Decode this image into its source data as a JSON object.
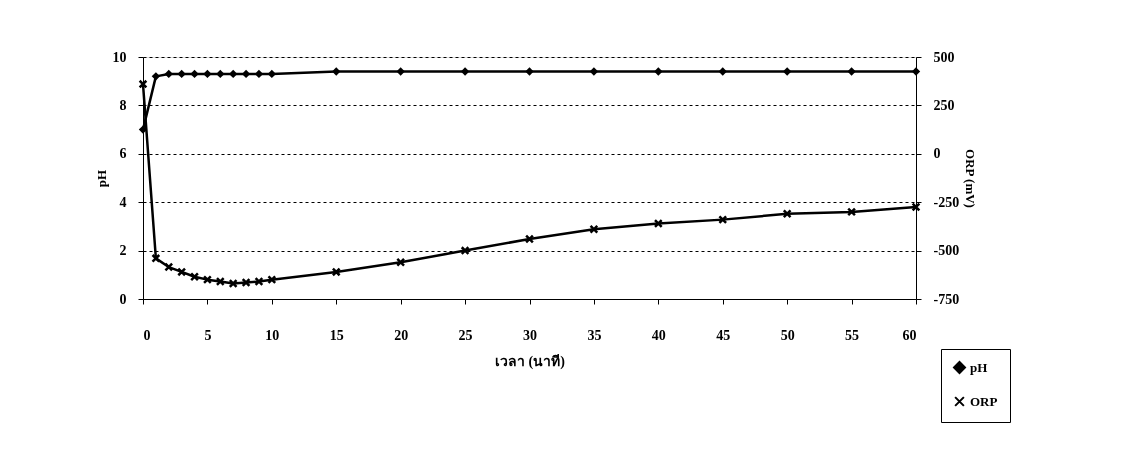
{
  "chart_data": {
    "type": "line",
    "xlabel": "เวลา (นาที)",
    "ylabel": "pH",
    "y2label": "ORP (mV)",
    "x": [
      0,
      1,
      2,
      3,
      4,
      5,
      6,
      7,
      8,
      9,
      10,
      15,
      20,
      25,
      30,
      35,
      40,
      45,
      50,
      55,
      60
    ],
    "xlim": [
      0,
      60
    ],
    "xticks": [
      0,
      5,
      10,
      15,
      20,
      25,
      30,
      35,
      40,
      45,
      50,
      55,
      60
    ],
    "ylim": [
      0,
      10
    ],
    "yticks": [
      0,
      2,
      4,
      6,
      8,
      10
    ],
    "y2lim": [
      -750,
      500
    ],
    "y2ticks": [
      -750,
      -500,
      -250,
      0,
      250,
      500
    ],
    "series": [
      {
        "name": "pH",
        "color": "#000000",
        "marker": "diamond",
        "values": [
          7.0,
          9.2,
          9.3,
          9.3,
          9.3,
          9.3,
          9.3,
          9.3,
          9.3,
          9.3,
          9.3,
          9.4,
          9.4,
          9.4,
          9.4,
          9.4,
          9.4,
          9.4,
          9.4,
          9.4,
          9.4
        ]
      },
      {
        "name": "ORP",
        "color": "#000000",
        "marker": "cross",
        "axis": "y2",
        "values": [
          360,
          -540,
          -585,
          -610,
          -635,
          -650,
          -660,
          -670,
          -665,
          -660,
          -650,
          -610,
          -560,
          -500,
          -440,
          -390,
          -360,
          -340,
          -310,
          -300,
          -275
        ]
      }
    ],
    "grid": "y",
    "legend": "bottom right",
    "line_style": "solid"
  }
}
